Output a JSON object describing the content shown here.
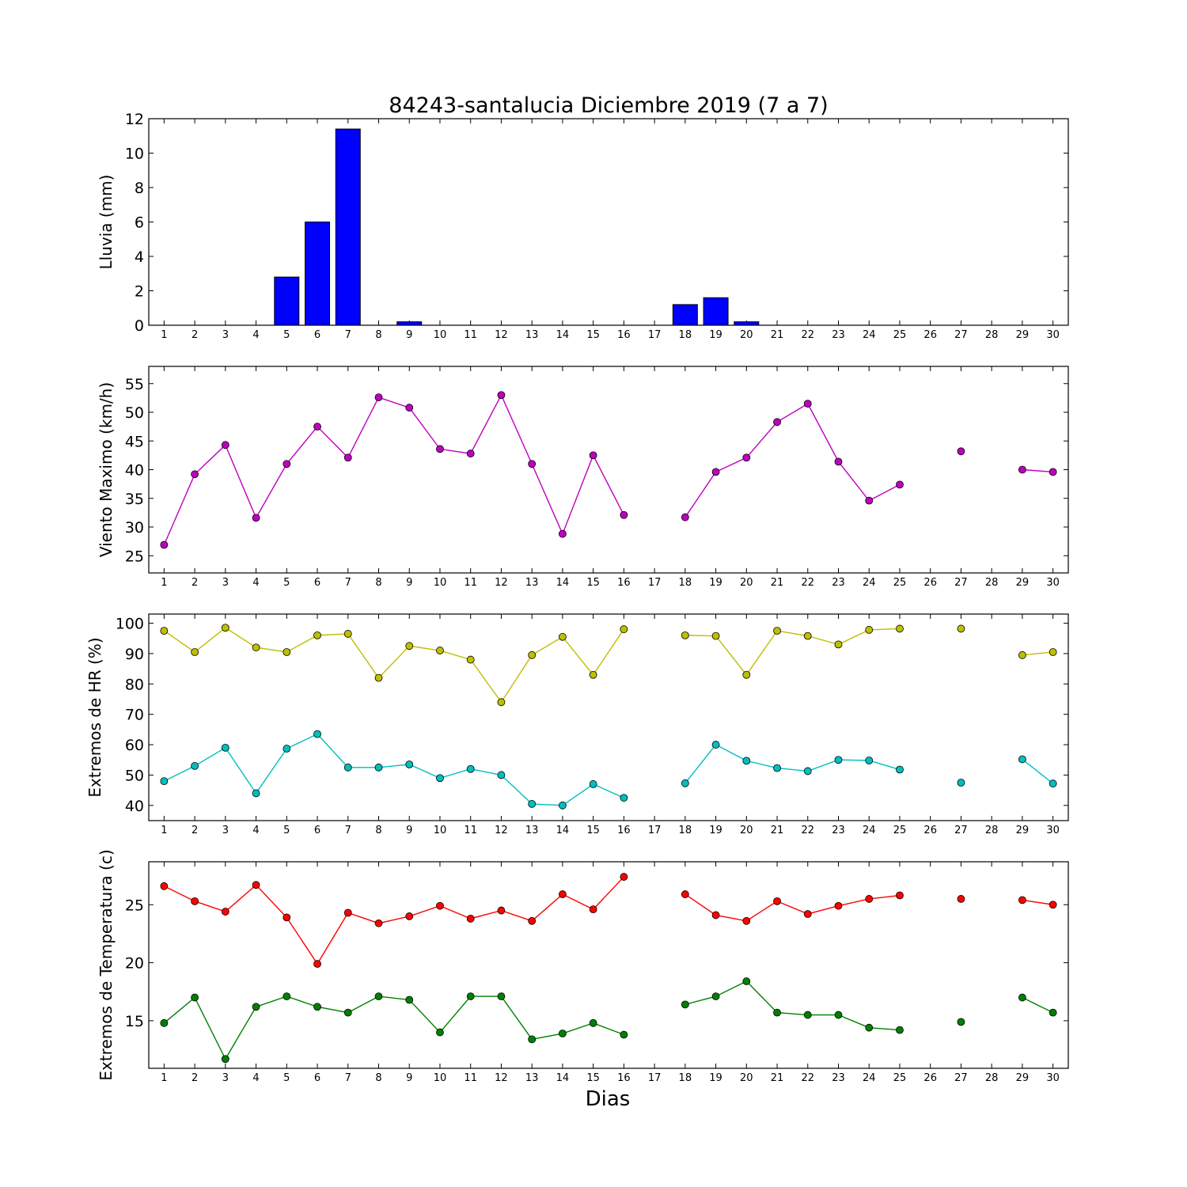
{
  "title": "84243-santalucia Diciembre 2019  (7 a 7)",
  "xlabel": "Dias",
  "colors": {
    "rain": "#0000ff",
    "wind": "#bf00bf",
    "hr_max": "#bfbf00",
    "hr_min": "#00bfbf",
    "t_max": "#ff0000",
    "t_min": "#008000"
  },
  "chart_data": [
    {
      "type": "bar",
      "ylabel": "Lluvia (mm)",
      "ylim": [
        0,
        12
      ],
      "yticks": [
        0,
        2,
        4,
        6,
        8,
        10,
        12
      ],
      "categories": [
        1,
        2,
        3,
        4,
        5,
        6,
        7,
        8,
        9,
        10,
        11,
        12,
        13,
        14,
        15,
        16,
        17,
        18,
        19,
        20,
        21,
        22,
        23,
        24,
        25,
        26,
        27,
        28,
        29,
        30
      ],
      "xticks": [
        "1",
        "2",
        "3",
        "4",
        "5",
        "6",
        "7",
        "8",
        "9",
        "10",
        "11",
        "12",
        "13",
        "14",
        "15",
        "16",
        "17",
        "18",
        "19",
        "20",
        "21",
        "22",
        "23",
        "24",
        "25",
        "26",
        "27",
        "28",
        "29",
        "30"
      ],
      "series": [
        {
          "color_key": "rain",
          "values": [
            0,
            0,
            0,
            0,
            2.8,
            6.0,
            11.4,
            0,
            0.2,
            0,
            0,
            0,
            0,
            0,
            0,
            0,
            null,
            1.2,
            1.6,
            0.2,
            0,
            0,
            0,
            0,
            0,
            0,
            0,
            0,
            0,
            0
          ]
        }
      ]
    },
    {
      "type": "line",
      "ylabel": "Viento Maximo (km/h)",
      "ylim": [
        22,
        58
      ],
      "yticks": [
        25,
        30,
        35,
        40,
        45,
        50,
        55
      ],
      "xticks": [
        "1",
        "2",
        "3",
        "4",
        "5",
        "6",
        "7",
        "8",
        "9",
        "10",
        "11",
        "12",
        "13",
        "14",
        "15",
        "16",
        "17",
        "18",
        "19",
        "20",
        "21",
        "22",
        "23",
        "24",
        "25",
        "26",
        "27",
        "28",
        "29",
        "30"
      ],
      "series": [
        {
          "color_key": "wind",
          "values": [
            26.9,
            39.2,
            44.3,
            31.6,
            41.0,
            47.5,
            42.1,
            52.6,
            50.8,
            43.6,
            42.8,
            53.0,
            41.0,
            28.8,
            42.5,
            32.1,
            null,
            31.7,
            39.6,
            42.1,
            48.3,
            51.5,
            41.4,
            34.6,
            37.4,
            null,
            43.2,
            null,
            40.0,
            39.6
          ]
        }
      ]
    },
    {
      "type": "line",
      "ylabel": "Extremos de HR (%)",
      "ylim": [
        35,
        103
      ],
      "yticks": [
        40,
        50,
        60,
        70,
        80,
        90,
        100
      ],
      "xticks": [
        "1",
        "2",
        "3",
        "4",
        "5",
        "6",
        "7",
        "8",
        "9",
        "10",
        "11",
        "12",
        "13",
        "14",
        "15",
        "16",
        "17",
        "18",
        "19",
        "20",
        "21",
        "22",
        "23",
        "24",
        "25",
        "26",
        "27",
        "28",
        "29",
        "30"
      ],
      "series": [
        {
          "color_key": "hr_max",
          "values": [
            97.5,
            90.5,
            98.5,
            92.0,
            90.5,
            96.0,
            96.5,
            82.0,
            92.5,
            91.0,
            88.0,
            74.0,
            89.5,
            95.5,
            83.0,
            98.0,
            null,
            96.0,
            95.8,
            83.0,
            97.5,
            95.8,
            93.0,
            97.8,
            98.2,
            null,
            98.2,
            null,
            89.5,
            90.5
          ]
        },
        {
          "color_key": "hr_min",
          "values": [
            48.0,
            53.0,
            59.0,
            44.0,
            58.7,
            63.5,
            52.5,
            52.5,
            53.5,
            49.0,
            52.0,
            50.0,
            40.5,
            40.0,
            47.0,
            42.5,
            null,
            47.3,
            60.0,
            54.7,
            52.3,
            51.3,
            55.0,
            54.8,
            51.8,
            null,
            47.5,
            null,
            55.2,
            47.2
          ]
        }
      ]
    },
    {
      "type": "line",
      "ylabel": "Extremos de Temperatura (c)",
      "ylim": [
        10.9,
        28.7
      ],
      "yticks": [
        15,
        20,
        25
      ],
      "xticks": [
        "1",
        "2",
        "3",
        "4",
        "5",
        "6",
        "7",
        "8",
        "9",
        "10",
        "11",
        "12",
        "13",
        "14",
        "15",
        "16",
        "17",
        "18",
        "19",
        "20",
        "21",
        "22",
        "23",
        "24",
        "25",
        "26",
        "27",
        "28",
        "29",
        "30"
      ],
      "series": [
        {
          "color_key": "t_max",
          "values": [
            26.6,
            25.3,
            24.4,
            26.7,
            23.9,
            19.9,
            24.3,
            23.4,
            24.0,
            24.9,
            23.8,
            24.5,
            23.6,
            25.9,
            24.6,
            27.4,
            null,
            25.9,
            24.1,
            23.6,
            25.3,
            24.2,
            24.9,
            25.5,
            25.8,
            null,
            25.5,
            null,
            25.4,
            25.0
          ]
        },
        {
          "color_key": "t_min",
          "values": [
            14.8,
            17.0,
            11.7,
            16.2,
            17.1,
            16.2,
            15.7,
            17.1,
            16.8,
            14.0,
            17.1,
            17.1,
            13.4,
            13.9,
            14.8,
            13.8,
            null,
            16.4,
            17.1,
            18.4,
            15.7,
            15.5,
            15.5,
            14.4,
            14.2,
            null,
            14.9,
            null,
            17.0,
            15.7
          ]
        }
      ]
    }
  ]
}
